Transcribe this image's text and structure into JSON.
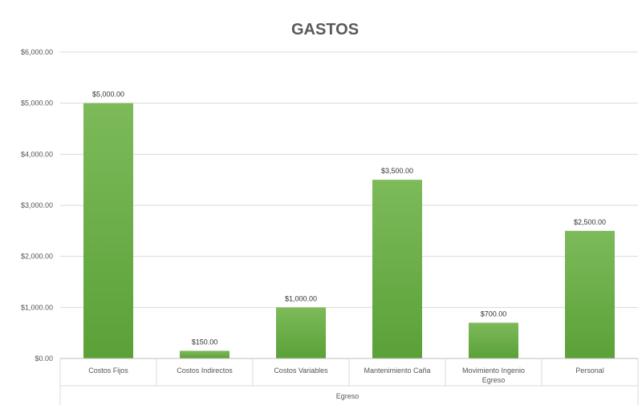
{
  "chart_data": {
    "type": "bar",
    "title": "GASTOS",
    "xlabel": "Egreso",
    "ylabel": "",
    "categories": [
      [
        "Costos Fijos"
      ],
      [
        "Costos Indirectos"
      ],
      [
        "Costos Variables"
      ],
      [
        "Mantenimiento Caña"
      ],
      [
        "Movimiento Ingenio",
        "Egreso"
      ],
      [
        "Personal"
      ]
    ],
    "values": [
      5000,
      150,
      1000,
      3500,
      700,
      2500
    ],
    "data_labels": [
      "$5,000.00",
      "$150.00",
      "$1,000.00",
      "$3,500.00",
      "$700.00",
      "$2,500.00"
    ],
    "ylim": [
      0,
      6000
    ],
    "yticks": [
      0,
      1000,
      2000,
      3000,
      4000,
      5000,
      6000
    ],
    "ytick_labels": [
      "$0.00",
      "$1,000.00",
      "$2,000.00",
      "$3,000.00",
      "$4,000.00",
      "$5,000.00",
      "$6,000.00"
    ],
    "grid": true,
    "legend": "none",
    "colors": {
      "bar_top": "#7dba5a",
      "bar_bottom": "#5aa137",
      "grid": "#d9d9d9",
      "text": "#595959"
    }
  }
}
